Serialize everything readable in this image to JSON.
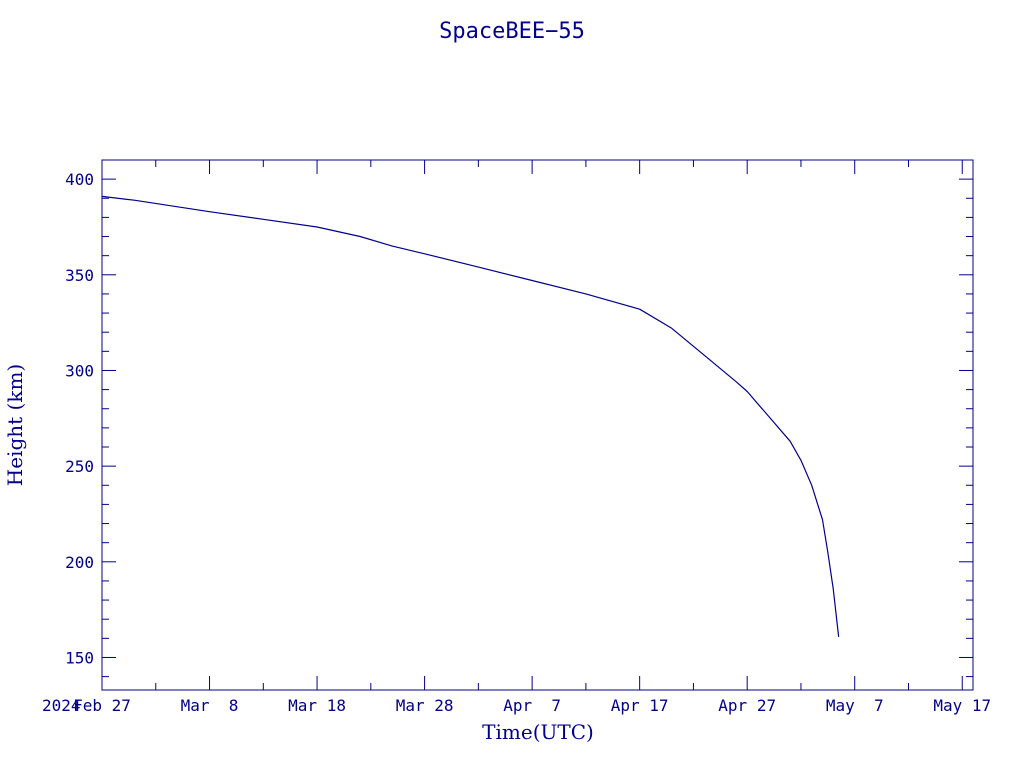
{
  "chart_data": {
    "type": "line",
    "title": "SpaceBEE−55",
    "xlabel": "Time(UTC)",
    "ylabel": "Height (km)",
    "year_label": "2024",
    "x_ticks": [
      {
        "date": "2024-02-27",
        "label": "Feb 27"
      },
      {
        "date": "2024-03-08",
        "label": "Mar  8"
      },
      {
        "date": "2024-03-18",
        "label": "Mar 18"
      },
      {
        "date": "2024-03-28",
        "label": "Mar 28"
      },
      {
        "date": "2024-04-07",
        "label": "Apr  7"
      },
      {
        "date": "2024-04-17",
        "label": "Apr 17"
      },
      {
        "date": "2024-04-27",
        "label": "Apr 27"
      },
      {
        "date": "2024-05-07",
        "label": "May  7"
      },
      {
        "date": "2024-05-17",
        "label": "May 17"
      }
    ],
    "y_ticks": [
      150,
      200,
      250,
      300,
      350,
      400
    ],
    "xlim": [
      "2024-02-27",
      "2024-05-18"
    ],
    "ylim": [
      133,
      410
    ],
    "grid": false,
    "colors": {
      "axis": "#00008b",
      "line": "#00008b"
    },
    "series": [
      {
        "points": [
          [
            "2024-02-27",
            391
          ],
          [
            "2024-03-01",
            389
          ],
          [
            "2024-03-08",
            383
          ],
          [
            "2024-03-13",
            379
          ],
          [
            "2024-03-18",
            375
          ],
          [
            "2024-03-22",
            370
          ],
          [
            "2024-03-25",
            365
          ],
          [
            "2024-03-28",
            361
          ],
          [
            "2024-04-02",
            354
          ],
          [
            "2024-04-07",
            347
          ],
          [
            "2024-04-12",
            340
          ],
          [
            "2024-04-17",
            332
          ],
          [
            "2024-04-20",
            322
          ],
          [
            "2024-04-23",
            308
          ],
          [
            "2024-04-26",
            294
          ],
          [
            "2024-04-27",
            289
          ],
          [
            "2024-04-29",
            276
          ],
          [
            "2024-05-01",
            263
          ],
          [
            "2024-05-02",
            253
          ],
          [
            "2024-05-03",
            240
          ],
          [
            "2024-05-04",
            222
          ],
          [
            "2024-05-04T12:00",
            205
          ],
          [
            "2024-05-05",
            186
          ],
          [
            "2024-05-05T12:00",
            161
          ]
        ]
      }
    ]
  }
}
